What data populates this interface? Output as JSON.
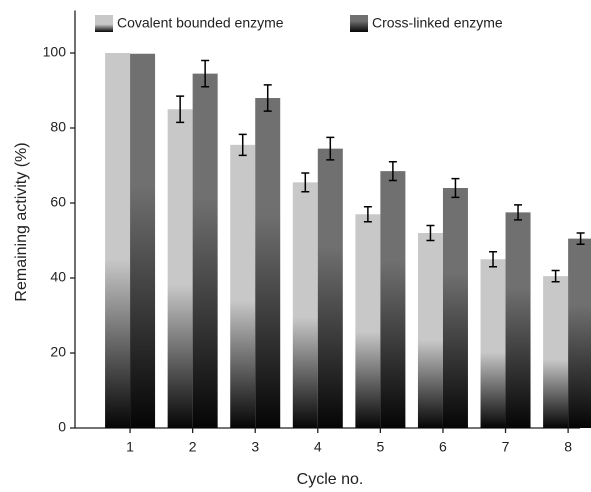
{
  "chart_data": {
    "type": "bar",
    "x_label": "Cycle no.",
    "y_label": "Remaining activity (%)",
    "x": [
      1,
      2,
      3,
      4,
      5,
      6,
      7,
      8
    ],
    "xlim": [
      0.12,
      8.19
    ],
    "xticks": [
      1,
      2,
      3,
      4,
      5,
      6,
      7,
      8
    ],
    "ylim": [
      0,
      110
    ],
    "yticks": [
      0,
      20,
      40,
      60,
      80,
      100
    ],
    "legend": "top",
    "series": [
      {
        "name": "Covalent bounded enzyme",
        "color": "#c8c8c8",
        "values": [
          100,
          85,
          75.5,
          65.5,
          57,
          52,
          45,
          40.5
        ],
        "errors": [
          0,
          3.5,
          2.8,
          2.5,
          2,
          2,
          2,
          1.5
        ]
      },
      {
        "name": "Cross-linked enzyme",
        "color": "#707070",
        "values": [
          99.8,
          94.5,
          88,
          74.5,
          68.5,
          64,
          57.5,
          50.5
        ],
        "errors": [
          0,
          3.5,
          3.5,
          3,
          2.5,
          2.5,
          2,
          1.5
        ]
      }
    ]
  }
}
